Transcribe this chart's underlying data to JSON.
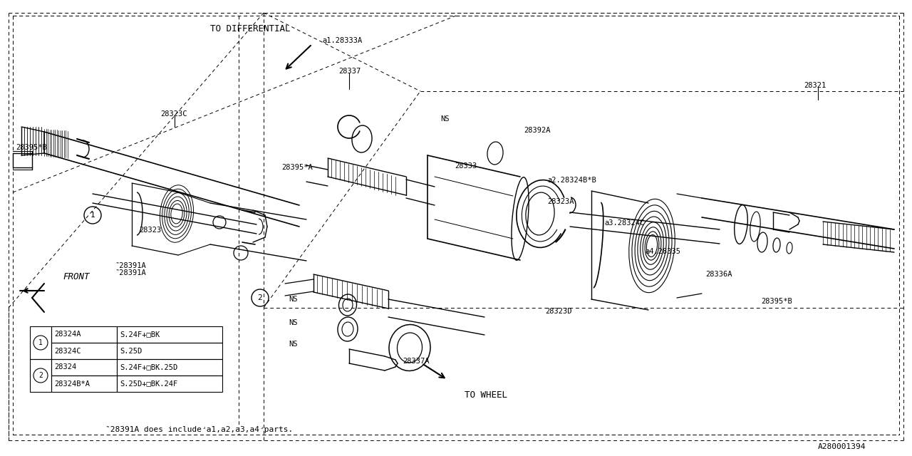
{
  "bg_color": "#ffffff",
  "lc": "#000000",
  "part_number_id": "A280001394",
  "footnote": "‶28391A does includeʴa1,a2,a3,a4ʴparts.",
  "to_differential": "TO DIFFERENTIAL",
  "to_wheel": "TO WHEEL",
  "front_label": "FRONT",
  "figsize": [
    12.8,
    6.4
  ],
  "dpi": 100
}
